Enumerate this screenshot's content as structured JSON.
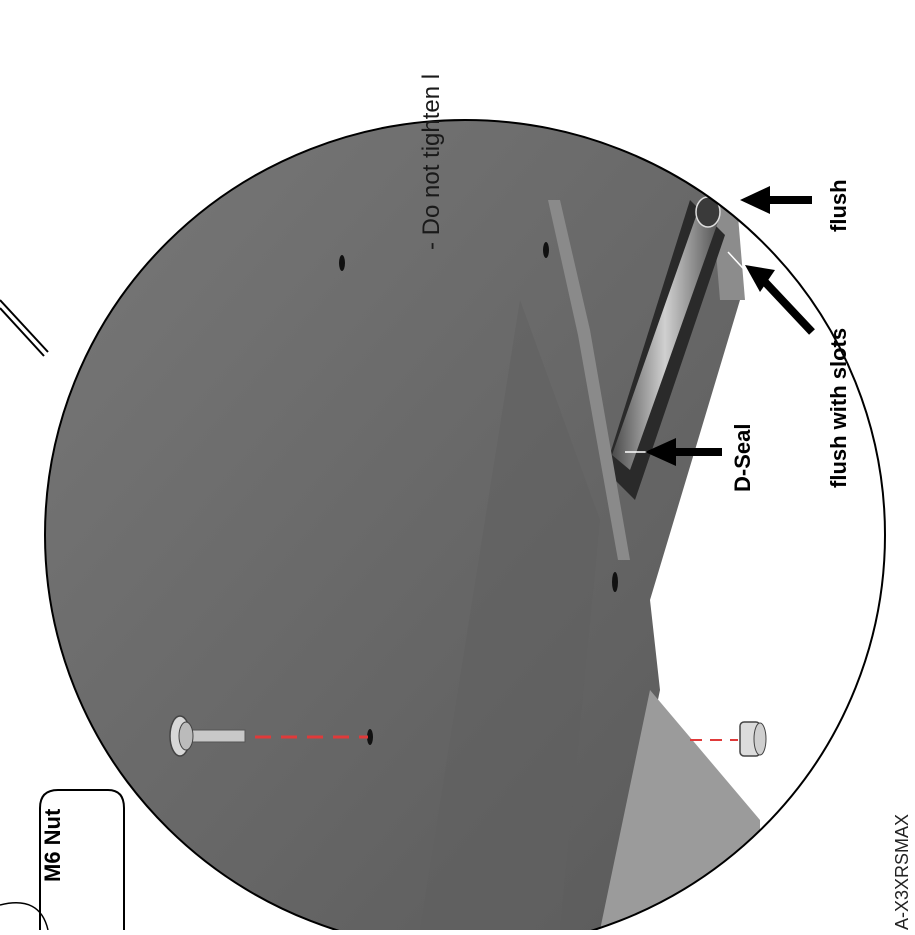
{
  "instruction_text": "- Do not tighten l",
  "labels": {
    "flush": "flush",
    "flush_with_slots": "flush with slots",
    "d_seal": "D-Seal",
    "m6_nut": "M6 Nut"
  },
  "figure_code": "A-X3XRSMAX",
  "colors": {
    "panel": "#6b6b6b",
    "panel_dark": "#5c5c5c",
    "panel_light": "#8a8a8a",
    "bracket": "#9a9a9a",
    "leader": "#000000",
    "dashed_line": "#e03a3a"
  },
  "icons": [
    "zoom-circle",
    "bolt-icon",
    "flange-nut-icon",
    "arrow-icon"
  ]
}
